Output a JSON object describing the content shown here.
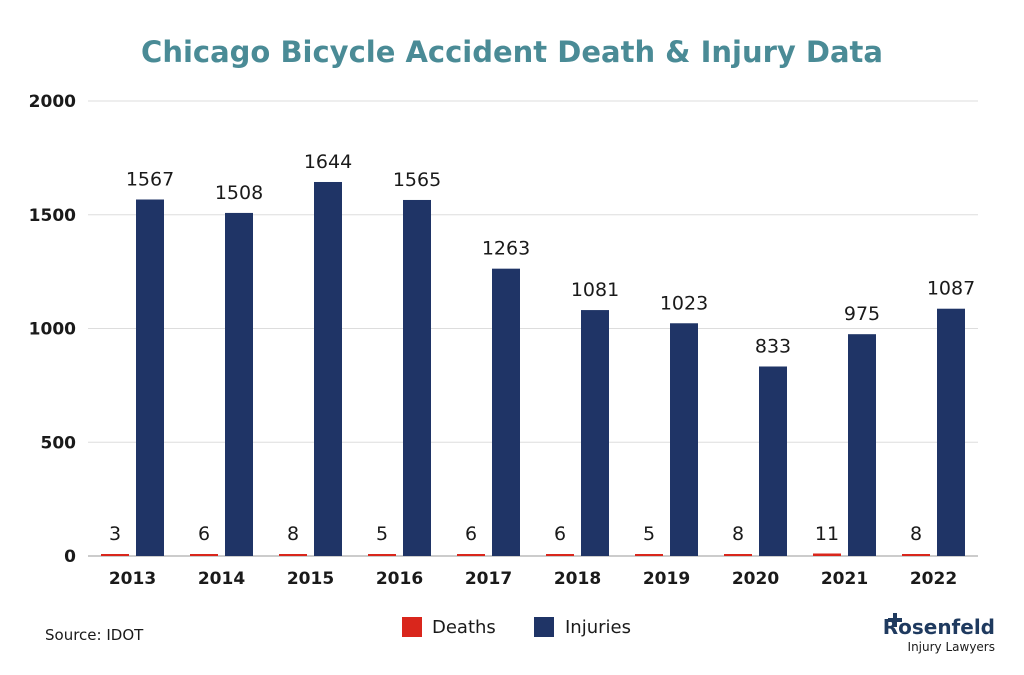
{
  "colors": {
    "title": "#4a8b96",
    "deaths": "#d9261c",
    "injuries": "#1f3466",
    "grid": "#dddddd",
    "brand": "#1f3a5f"
  },
  "chart_data": {
    "type": "bar",
    "title": "Chicago Bicycle Accident Death & Injury Data",
    "categories": [
      "2013",
      "2014",
      "2015",
      "2016",
      "2017",
      "2018",
      "2019",
      "2020",
      "2021",
      "2022"
    ],
    "series": [
      {
        "name": "Deaths",
        "values": [
          3,
          6,
          8,
          5,
          6,
          6,
          5,
          8,
          11,
          8
        ]
      },
      {
        "name": "Injuries",
        "values": [
          1567,
          1508,
          1644,
          1565,
          1263,
          1081,
          1023,
          833,
          975,
          1087
        ]
      }
    ],
    "ylim": [
      0,
      2000
    ],
    "yticks": [
      "0",
      "500",
      "1000",
      "1500",
      "2000"
    ],
    "grid": true,
    "legend_position": "bottom-center"
  },
  "source_text": "Source: IDOT",
  "brand": {
    "name": "Rosenfeld",
    "subtitle": "Injury Lawyers"
  }
}
